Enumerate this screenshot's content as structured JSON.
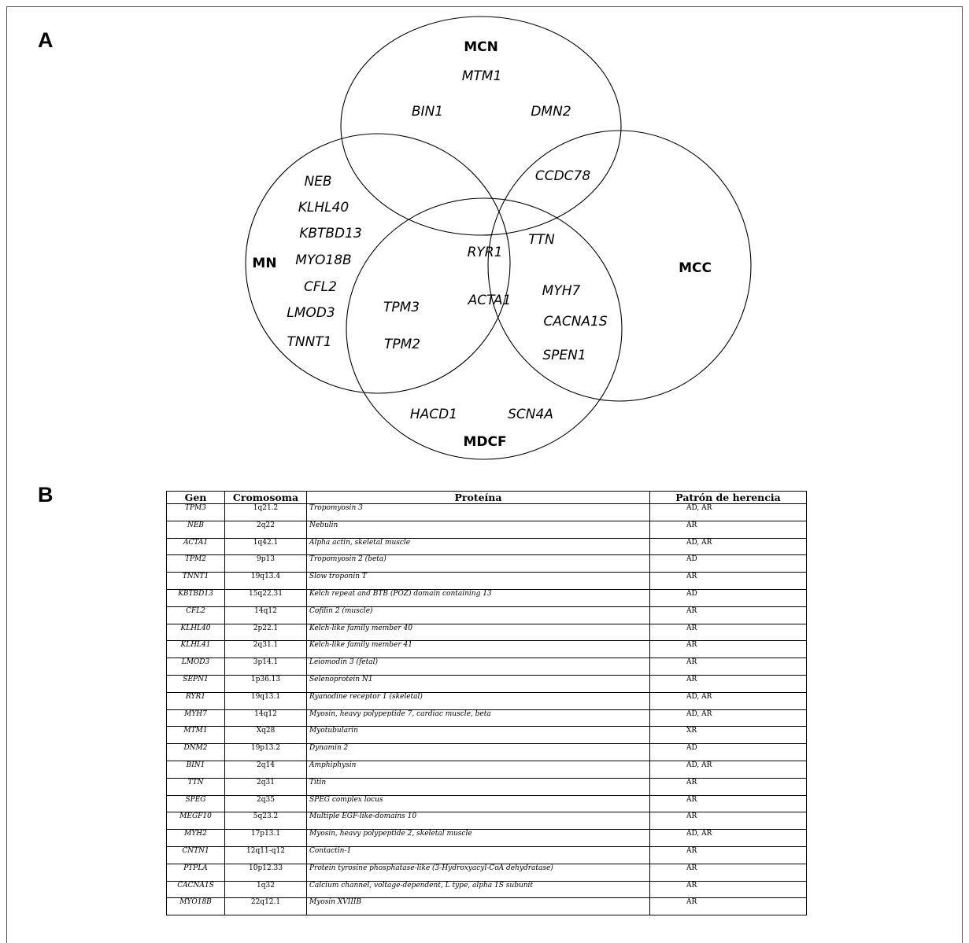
{
  "panel_a_label": "A",
  "panel_b_label": "B",
  "venn": {
    "sets": [
      "MCN",
      "MN",
      "MCC",
      "MDCF"
    ],
    "genes": [
      "MTM1",
      "BIN1",
      "DMN2",
      "CCDC78",
      "NEB",
      "KLHL40",
      "KBTBD13",
      "MYO18B",
      "CFL2",
      "LMOD3",
      "TNNT1",
      "RYR1",
      "TTN",
      "ACTA1",
      "TPM3",
      "TPM2",
      "MYH7",
      "CACNA1S",
      "SPEN1",
      "HACD1",
      "SCN4A"
    ]
  },
  "table": {
    "headers": [
      "Gen",
      "Cromosoma",
      "Proteína",
      "Patrón de herencia"
    ],
    "rows": [
      [
        "TPM3",
        "1q21.2",
        "Tropomyosin 3",
        "AD, AR"
      ],
      [
        "NEB",
        "2q22",
        "Nebulin",
        "AR"
      ],
      [
        "ACTA1",
        "1q42.1",
        "Alpha actin, skeletal muscle",
        "AD, AR"
      ],
      [
        "TPM2",
        "9p13",
        "Tropomyosin 2 (beta)",
        "AD"
      ],
      [
        "TNNT1",
        "19q13.4",
        "Slow troponin T",
        "AR"
      ],
      [
        "KBTBD13",
        "15q22.31",
        "Kelch repeat and BTB (POZ) domain containing 13",
        "AD"
      ],
      [
        "CFL2",
        "14q12",
        "Cofilin 2 (muscle)",
        "AR"
      ],
      [
        "KLHL40",
        "2p22.1",
        "Kelch-like family member 40",
        "AR"
      ],
      [
        "KLHL41",
        "2q31.1",
        "Kelch-like family member 41",
        "AR"
      ],
      [
        "LMOD3",
        "3p14.1",
        "Leiomodin 3 (fetal)",
        "AR"
      ],
      [
        "SEPN1",
        "1p36.13",
        "Selenoprotein N1",
        "AR"
      ],
      [
        "RYR1",
        "19q13.1",
        "Ryanodine receptor 1 (skeletal)",
        "AD, AR"
      ],
      [
        "MYH7",
        "14q12",
        "Myosin, heavy polypeptide 7, cardiac muscle, beta",
        "AD, AR"
      ],
      [
        "MTM1",
        "Xq28",
        "Myotubularin",
        "XR"
      ],
      [
        "DNM2",
        "19p13.2",
        "Dynamin 2",
        "AD"
      ],
      [
        "BIN1",
        "2q14",
        "Amphiphysin",
        "AD, AR"
      ],
      [
        "TTN",
        "2q31",
        "Titin",
        "AR"
      ],
      [
        "SPEG",
        "2q35",
        "SPEG complex locus",
        "AR"
      ],
      [
        "MEGF10",
        "5q23.2",
        "Multiple EGF-like-domains 10",
        "AR"
      ],
      [
        "MYH2",
        "17p13.1",
        "Myosin, heavy polypeptide 2, skeletal muscle",
        "AD, AR"
      ],
      [
        "CNTN1",
        "12q11-q12",
        "Contactin-1",
        "AR"
      ],
      [
        "PTPLA",
        "10p12.33",
        "Protein tyrosine phosphatase-like (3-Hydroxyacyl-CoA dehydratase)",
        "AR"
      ],
      [
        "CACNA1S",
        "1q32",
        "Calcium channel, voltage-dependent, L type, alpha 1S subunit",
        "AR"
      ],
      [
        "MYO18B",
        "22q12.1",
        "Myosin XVIIIB",
        "AR"
      ]
    ]
  }
}
